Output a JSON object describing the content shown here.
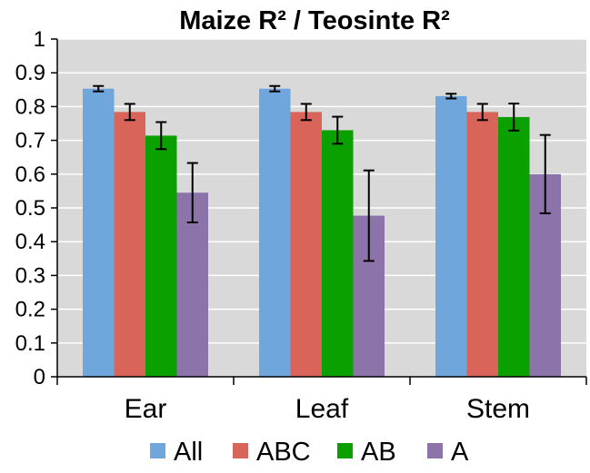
{
  "chart_data": {
    "type": "bar",
    "title": "Maize R² / Teosinte R²",
    "xlabel": "",
    "ylabel": "",
    "categories": [
      "Ear",
      "Leaf",
      "Stem"
    ],
    "ylim": [
      0,
      1
    ],
    "yticks": [
      "0",
      "0.1",
      "0.2",
      "0.3",
      "0.4",
      "0.5",
      "0.6",
      "0.7",
      "0.8",
      "0.9",
      "1"
    ],
    "grid": true,
    "legend_position": "bottom",
    "series": [
      {
        "name": "All",
        "color": "#6fa6dc",
        "values": [
          0.853,
          0.853,
          0.831
        ],
        "errors": [
          0.008,
          0.008,
          0.007
        ]
      },
      {
        "name": "ABC",
        "color": "#d9645a",
        "values": [
          0.784,
          0.784,
          0.784
        ],
        "errors": [
          0.024,
          0.024,
          0.024
        ]
      },
      {
        "name": "AB",
        "color": "#0aa000",
        "values": [
          0.714,
          0.73,
          0.769
        ],
        "errors": [
          0.04,
          0.04,
          0.04
        ]
      },
      {
        "name": "A",
        "color": "#8c73aa",
        "values": [
          0.545,
          0.477,
          0.6
        ],
        "errors": [
          0.088,
          0.134,
          0.116
        ]
      }
    ]
  }
}
